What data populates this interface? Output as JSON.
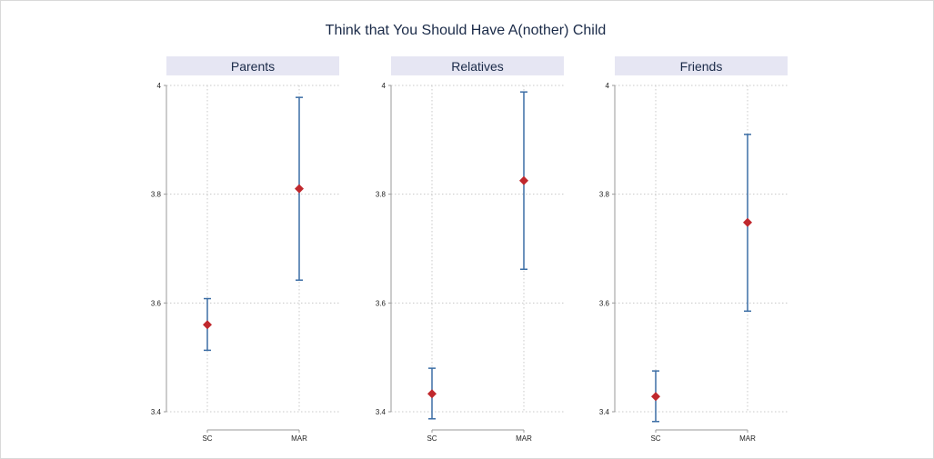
{
  "chart_data": {
    "type": "scatter",
    "title": "Think that You Should Have A(nother) Child",
    "categories": [
      "SC",
      "MAR"
    ],
    "ylim": [
      3.4,
      4.0
    ],
    "yticks": [
      3.4,
      3.6,
      3.8,
      4.0
    ],
    "ytick_labels": [
      "3.4",
      "3.6",
      "3.8",
      "4"
    ],
    "grid": true,
    "colors": {
      "point": "#c0282d",
      "errorbar": "#3c6ea5",
      "strip": "#e6e6f3",
      "grid": "#c8c8c8",
      "axis": "#999999"
    },
    "panels": [
      {
        "label": "Parents",
        "points": [
          {
            "category": "SC",
            "value": 3.56,
            "lower": 3.513,
            "upper": 3.608
          },
          {
            "category": "MAR",
            "value": 3.81,
            "lower": 3.642,
            "upper": 3.978
          }
        ]
      },
      {
        "label": "Relatives",
        "points": [
          {
            "category": "SC",
            "value": 3.433,
            "lower": 3.387,
            "upper": 3.48
          },
          {
            "category": "MAR",
            "value": 3.825,
            "lower": 3.662,
            "upper": 3.988
          }
        ]
      },
      {
        "label": "Friends",
        "points": [
          {
            "category": "SC",
            "value": 3.428,
            "lower": 3.382,
            "upper": 3.475
          },
          {
            "category": "MAR",
            "value": 3.748,
            "lower": 3.585,
            "upper": 3.91
          }
        ]
      }
    ]
  }
}
